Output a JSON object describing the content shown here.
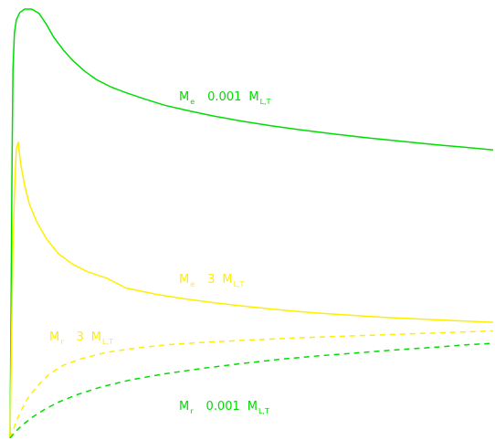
{
  "chart_data": {
    "type": "line",
    "title": "",
    "xlabel": "",
    "ylabel": "",
    "grid": false,
    "legend": "none",
    "axes_visible": false,
    "xlim": [
      0,
      1
    ],
    "ylim": [
      0,
      1
    ],
    "series": [
      {
        "name": "M_e 0.001 M_LT",
        "color": "#00dd00",
        "dash": "solid",
        "label": {
          "main": "M",
          "sub1": "e",
          "value": "0.001",
          "main2": "M",
          "sub2": "L,T"
        },
        "points": [
          [
            0.0,
            0.0
          ],
          [
            0.002,
            0.3
          ],
          [
            0.004,
            0.62
          ],
          [
            0.006,
            0.86
          ],
          [
            0.009,
            0.945
          ],
          [
            0.013,
            0.975
          ],
          [
            0.02,
            0.992
          ],
          [
            0.03,
            1.0
          ],
          [
            0.045,
            1.0
          ],
          [
            0.06,
            0.99
          ],
          [
            0.075,
            0.965
          ],
          [
            0.09,
            0.935
          ],
          [
            0.11,
            0.905
          ],
          [
            0.13,
            0.88
          ],
          [
            0.155,
            0.855
          ],
          [
            0.18,
            0.835
          ],
          [
            0.21,
            0.818
          ],
          [
            0.24,
            0.805
          ],
          [
            0.28,
            0.79
          ],
          [
            0.32,
            0.776
          ],
          [
            0.37,
            0.763
          ],
          [
            0.42,
            0.751
          ],
          [
            0.48,
            0.739
          ],
          [
            0.54,
            0.728
          ],
          [
            0.6,
            0.719
          ],
          [
            0.67,
            0.709
          ],
          [
            0.74,
            0.7
          ],
          [
            0.81,
            0.692
          ],
          [
            0.88,
            0.684
          ],
          [
            0.94,
            0.678
          ],
          [
            1.0,
            0.672
          ]
        ]
      },
      {
        "name": "M_e 3 M_LT",
        "color": "#ffee00",
        "dash": "solid",
        "label": {
          "main": "M",
          "sub1": "e",
          "value": "3",
          "main2": "M",
          "sub2": "L,T"
        },
        "points": [
          [
            0.0,
            0.0
          ],
          [
            0.006,
            0.45
          ],
          [
            0.01,
            0.6
          ],
          [
            0.013,
            0.675
          ],
          [
            0.017,
            0.69
          ],
          [
            0.022,
            0.64
          ],
          [
            0.03,
            0.59
          ],
          [
            0.04,
            0.545
          ],
          [
            0.055,
            0.505
          ],
          [
            0.075,
            0.465
          ],
          [
            0.1,
            0.43
          ],
          [
            0.13,
            0.405
          ],
          [
            0.16,
            0.388
          ],
          [
            0.2,
            0.373
          ],
          [
            0.24,
            0.35
          ],
          [
            0.3,
            0.336
          ],
          [
            0.36,
            0.325
          ],
          [
            0.42,
            0.316
          ],
          [
            0.49,
            0.307
          ],
          [
            0.56,
            0.299
          ],
          [
            0.63,
            0.292
          ],
          [
            0.7,
            0.287
          ],
          [
            0.77,
            0.282
          ],
          [
            0.84,
            0.278
          ],
          [
            0.92,
            0.274
          ],
          [
            1.0,
            0.27
          ]
        ]
      },
      {
        "name": "M_r 3 M_LT",
        "color": "#ffee00",
        "dash": "dashed",
        "label": {
          "main": "M",
          "sub1": "r",
          "value": "3",
          "main2": "M",
          "sub2": "L,T"
        },
        "points": [
          [
            0.0,
            0.0
          ],
          [
            0.01,
            0.03
          ],
          [
            0.02,
            0.058
          ],
          [
            0.035,
            0.09
          ],
          [
            0.055,
            0.12
          ],
          [
            0.08,
            0.148
          ],
          [
            0.11,
            0.17
          ],
          [
            0.15,
            0.186
          ],
          [
            0.2,
            0.2
          ],
          [
            0.26,
            0.21
          ],
          [
            0.33,
            0.218
          ],
          [
            0.41,
            0.224
          ],
          [
            0.5,
            0.229
          ],
          [
            0.6,
            0.234
          ],
          [
            0.7,
            0.238
          ],
          [
            0.8,
            0.242
          ],
          [
            0.9,
            0.246
          ],
          [
            1.0,
            0.25
          ]
        ]
      },
      {
        "name": "M_r 0.001 M_LT",
        "color": "#00dd00",
        "dash": "dashed",
        "label": {
          "main": "M",
          "sub1": "r",
          "value": "0.001",
          "main2": "M",
          "sub2": "L,T"
        },
        "points": [
          [
            0.0,
            0.0
          ],
          [
            0.01,
            0.014
          ],
          [
            0.025,
            0.03
          ],
          [
            0.045,
            0.048
          ],
          [
            0.07,
            0.066
          ],
          [
            0.1,
            0.084
          ],
          [
            0.14,
            0.102
          ],
          [
            0.19,
            0.12
          ],
          [
            0.25,
            0.136
          ],
          [
            0.32,
            0.15
          ],
          [
            0.4,
            0.163
          ],
          [
            0.48,
            0.174
          ],
          [
            0.56,
            0.184
          ],
          [
            0.64,
            0.192
          ],
          [
            0.72,
            0.199
          ],
          [
            0.8,
            0.206
          ],
          [
            0.88,
            0.212
          ],
          [
            0.95,
            0.218
          ],
          [
            1.0,
            0.221
          ]
        ]
      }
    ]
  }
}
